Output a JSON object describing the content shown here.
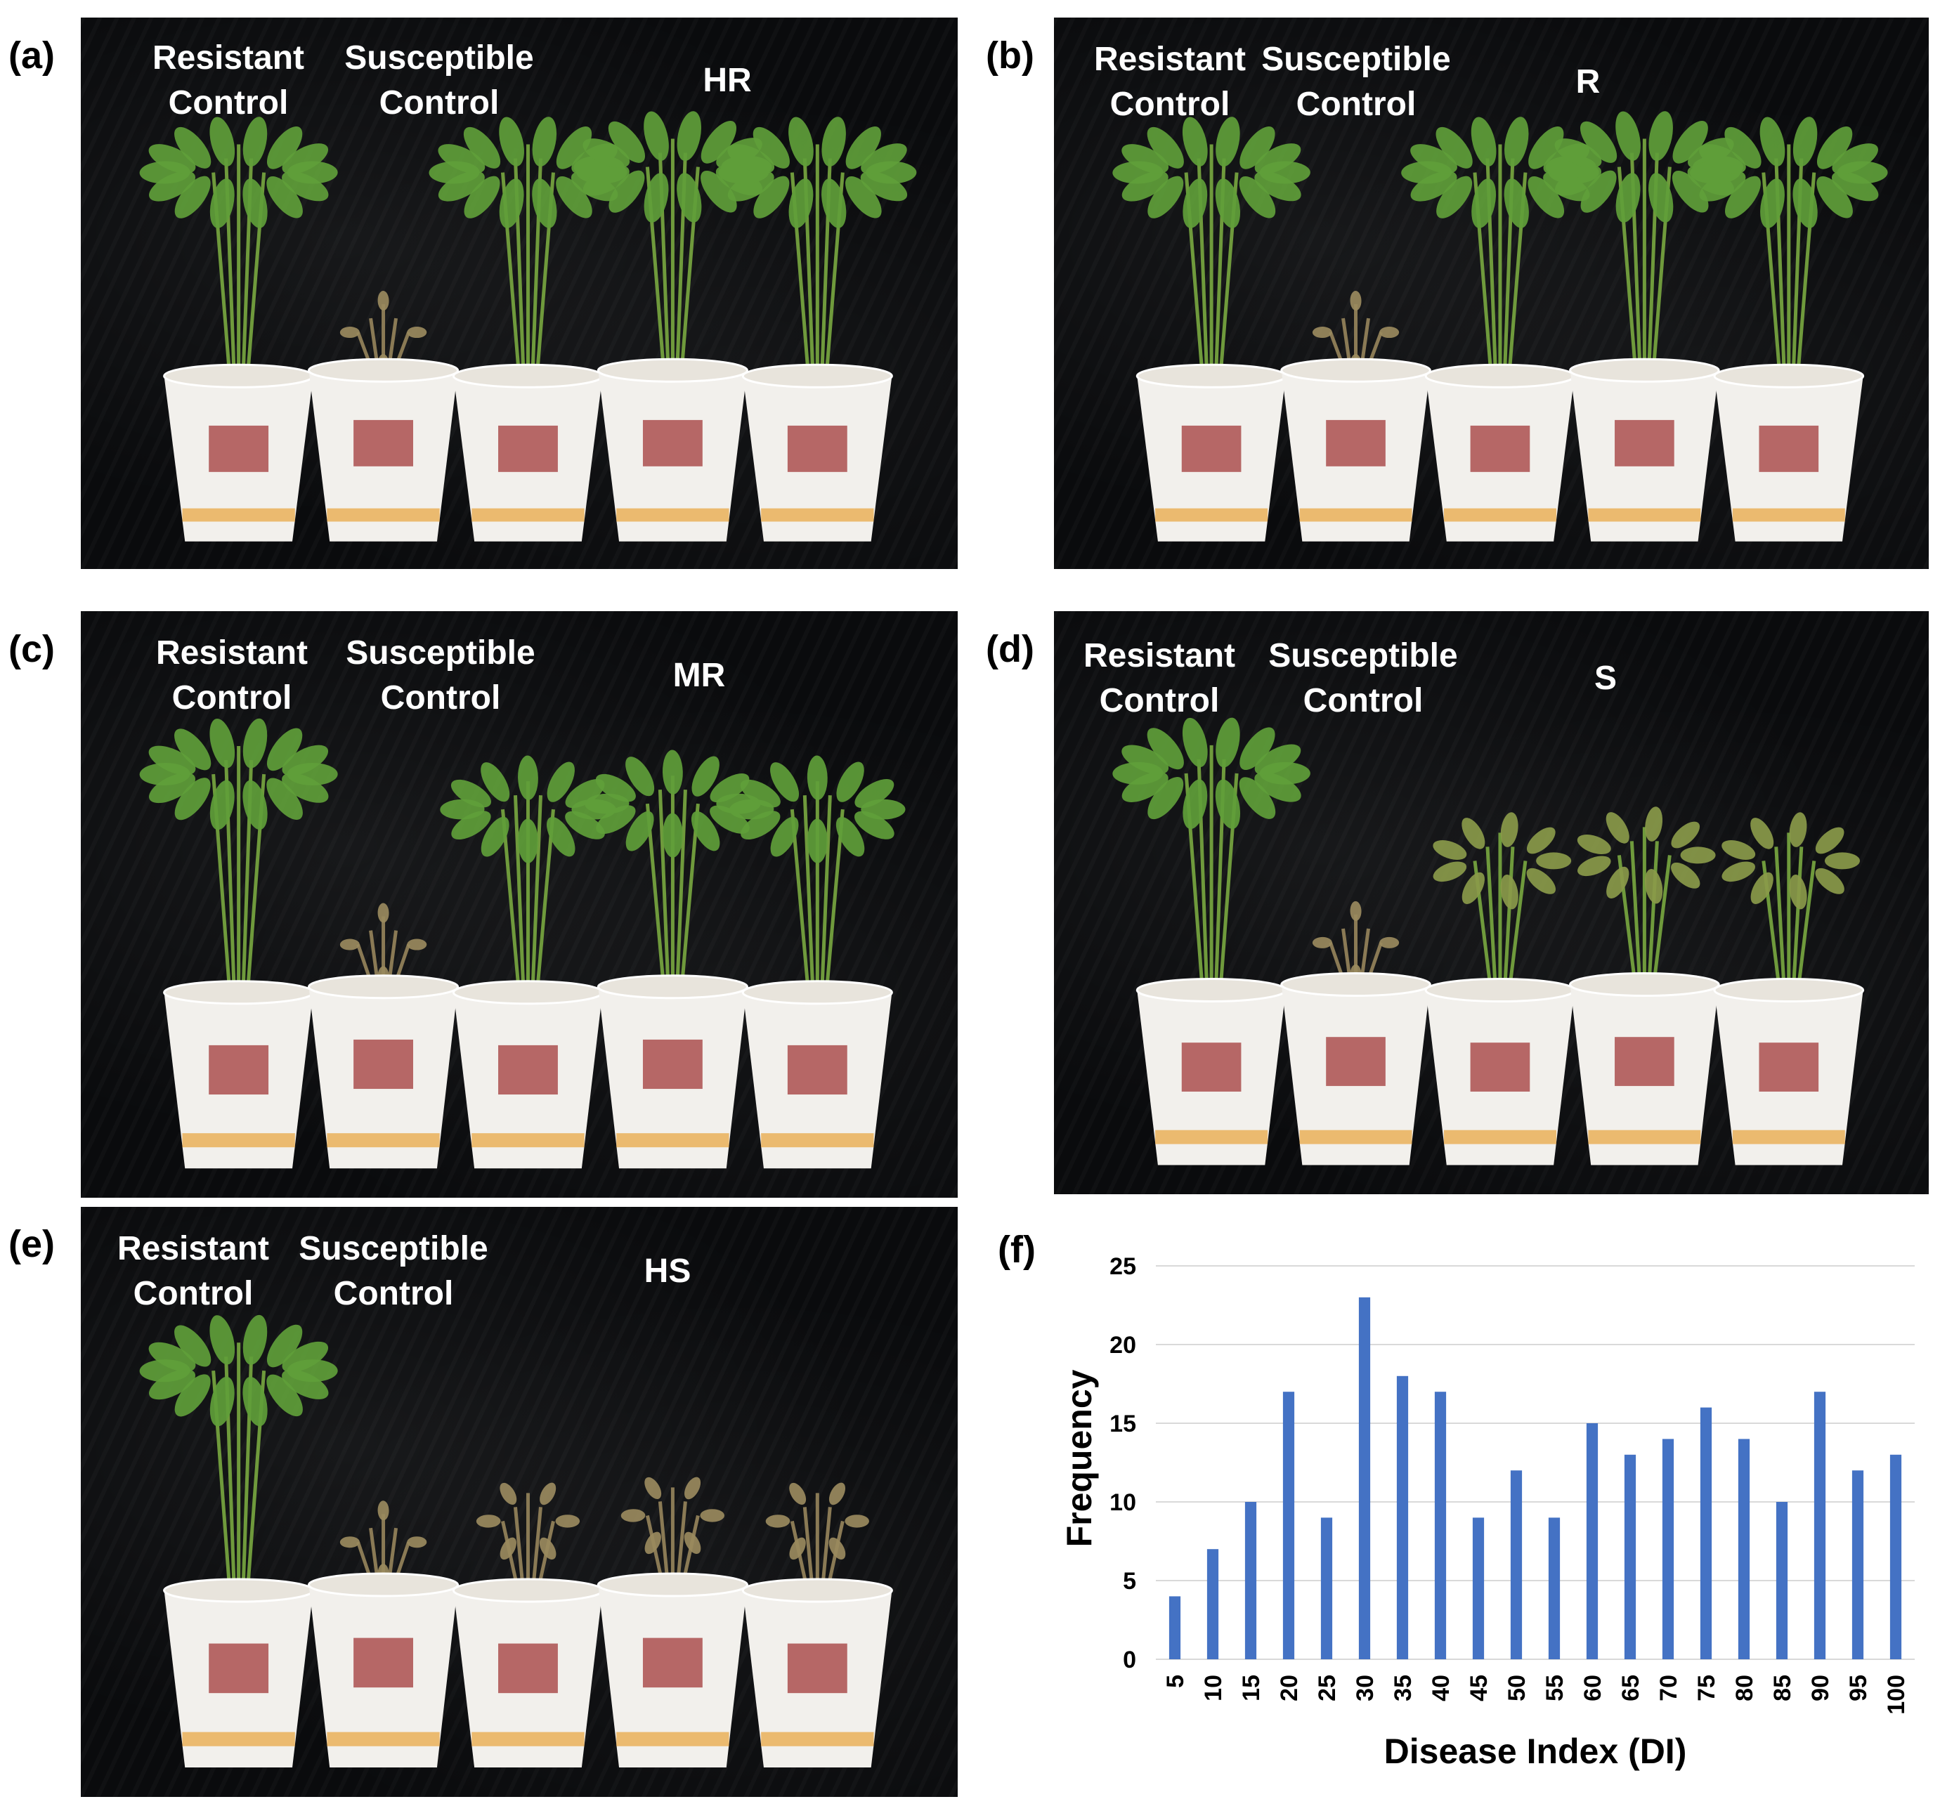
{
  "panels": [
    {
      "label": "(a)",
      "resistant": [
        "Resistant",
        "Control"
      ],
      "susceptible": [
        "Susceptible",
        "Control"
      ],
      "class": "HR"
    },
    {
      "label": "(b)",
      "resistant": [
        "Resistant",
        "Control"
      ],
      "susceptible": [
        "Susceptible",
        "Control"
      ],
      "class": "R"
    },
    {
      "label": "(c)",
      "resistant": [
        "Resistant",
        "Control"
      ],
      "susceptible": [
        "Susceptible",
        "Control"
      ],
      "class": "MR"
    },
    {
      "label": "(d)",
      "resistant": [
        "Resistant",
        "Control"
      ],
      "susceptible": [
        "Susceptible",
        "Control"
      ],
      "class": "S"
    },
    {
      "label": "(e)",
      "resistant": [
        "Resistant",
        "Control"
      ],
      "susceptible": [
        "Susceptible",
        "Control"
      ],
      "class": "HS"
    }
  ],
  "chart_panel_label": "(f)",
  "colors": {
    "bar": "#4472c4",
    "grid": "#d9d9d9",
    "background": "#0a0b0d",
    "leaf": "#5f9e3a",
    "cup": "#f2f0ec",
    "cup_print": "#a23a3a"
  },
  "chart_data": {
    "type": "bar",
    "categories": [
      "5",
      "10",
      "15",
      "20",
      "25",
      "30",
      "35",
      "40",
      "45",
      "50",
      "55",
      "60",
      "65",
      "70",
      "75",
      "80",
      "85",
      "90",
      "95",
      "100"
    ],
    "values": [
      4,
      7,
      10,
      17,
      9,
      23,
      18,
      17,
      9,
      12,
      9,
      15,
      13,
      14,
      16,
      14,
      10,
      17,
      12,
      13
    ],
    "xlabel": "Disease Index (DI)",
    "ylabel": "Frequency",
    "ylim": [
      0,
      25
    ],
    "yticks": [
      "0",
      "5",
      "10",
      "15",
      "20",
      "25"
    ],
    "grid": true
  }
}
